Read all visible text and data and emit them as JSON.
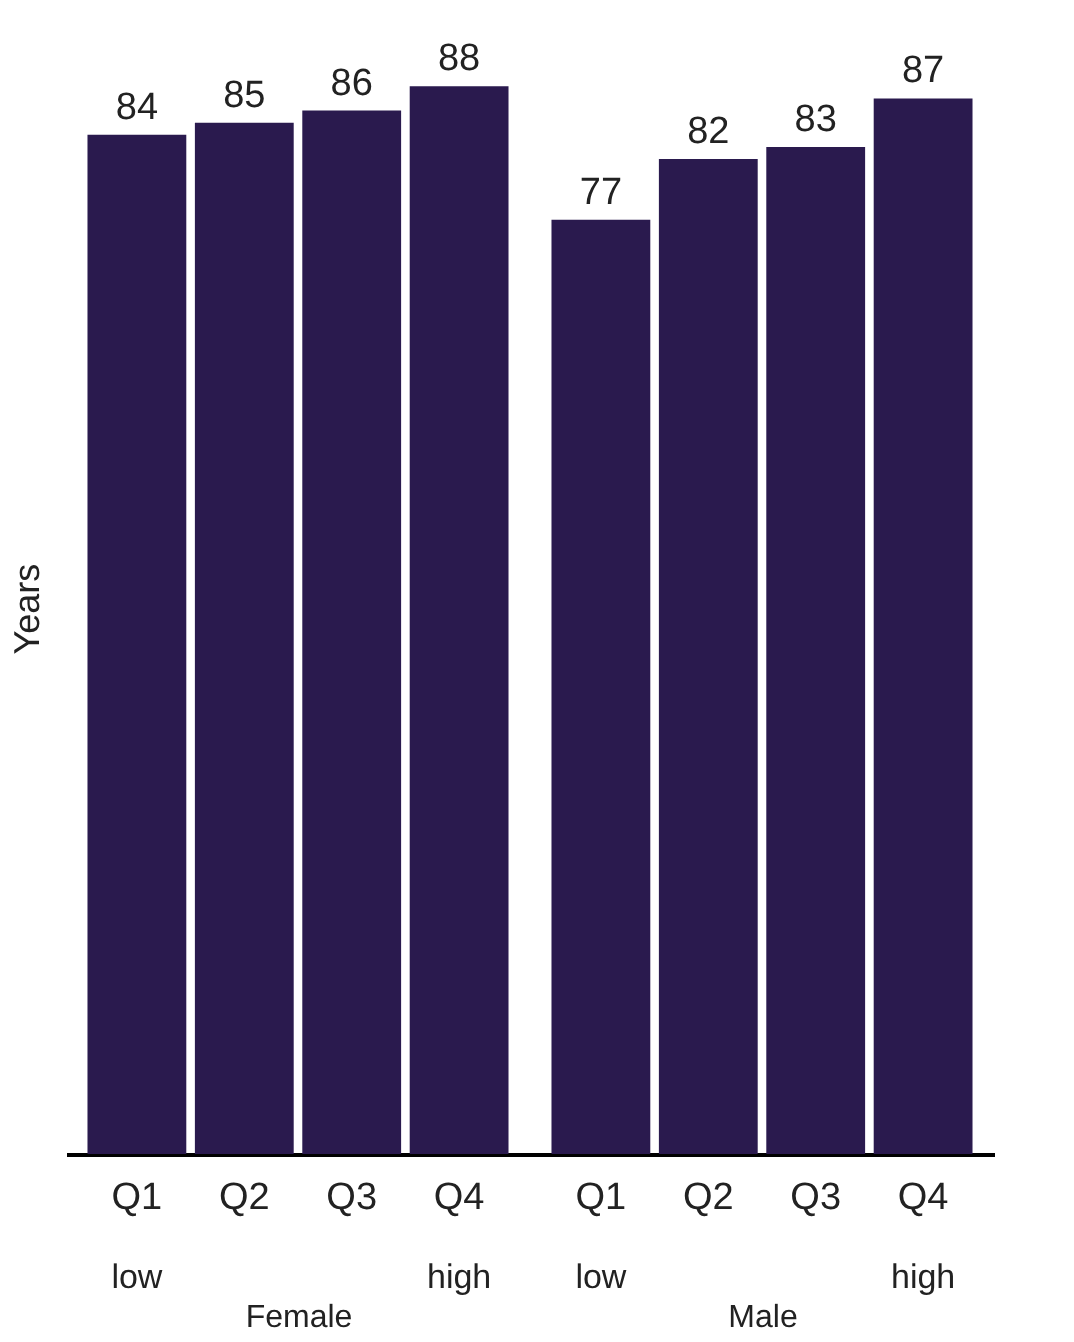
{
  "chart_data": [
    {
      "type": "bar",
      "categories": [
        "Q1",
        "Q2",
        "Q3",
        "Q4"
      ],
      "xlabel": "Female",
      "ylabel": "Years",
      "series": [
        {
          "color": "#2a1a4e",
          "values": [
            84,
            85,
            86,
            88
          ]
        }
      ],
      "data_labels": true,
      "tick_labels": "x",
      "grid": false,
      "legend": false,
      "annotations": [
        "low",
        "high"
      ]
    },
    {
      "type": "bar",
      "categories": [
        "Q1",
        "Q2",
        "Q3",
        "Q4"
      ],
      "xlabel": "Male",
      "series": [
        {
          "color": "#2a1a4e",
          "values": [
            77,
            82,
            83,
            87
          ]
        }
      ],
      "data_labels": true,
      "tick_labels": "x",
      "grid": false,
      "legend": false,
      "annotations": [
        "low",
        "high"
      ]
    }
  ]
}
